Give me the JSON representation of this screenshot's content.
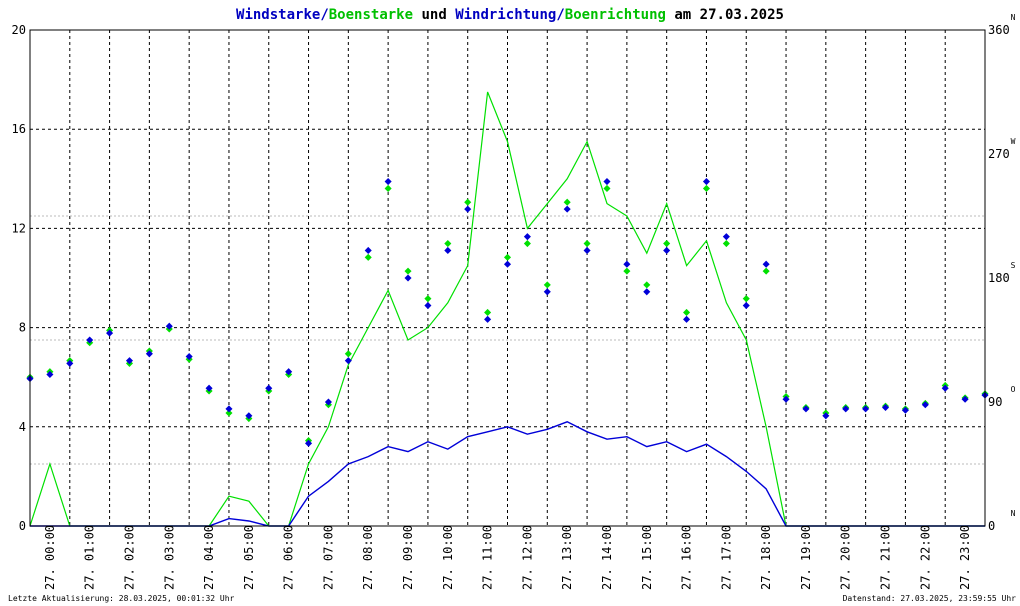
{
  "title": {
    "part1": "Windstarke",
    "sep1": "/",
    "part2": "Boenstarke",
    "mid": " und ",
    "part3": "Windrichtung",
    "sep2": "/",
    "part4": "Boenrichtung",
    "tail": " am 27.03.2025"
  },
  "footer": {
    "left": "Letzte Aktualisierung: 28.03.2025, 00:01:32 Uhr",
    "right": "Datenstand: 27.03.2025, 23:59:55 Uhr"
  },
  "colors": {
    "wind": "#0000d8",
    "gust": "#00e000",
    "title_blue": "#0000c0",
    "title_green": "#00c000",
    "grid": "#000000",
    "marker_red": "#ff0000"
  },
  "chart_data": {
    "type": "line",
    "left_axis": {
      "ylim": [
        0,
        20
      ],
      "ticks": [
        0,
        4,
        8,
        12,
        16,
        20
      ]
    },
    "right_axis": {
      "ylim": [
        0,
        360
      ],
      "ticks": [
        0,
        90,
        180,
        270,
        360
      ],
      "compass": [
        {
          "deg": 0,
          "label": "N"
        },
        {
          "deg": 90,
          "label": "O"
        },
        {
          "deg": 180,
          "label": "S"
        },
        {
          "deg": 270,
          "label": "W"
        },
        {
          "deg": 360,
          "label": "N"
        }
      ]
    },
    "x_ticks": [
      "27. 00:00",
      "27. 01:00",
      "27. 02:00",
      "27. 03:00",
      "27. 04:00",
      "27. 05:00",
      "27. 06:00",
      "27. 07:00",
      "27. 08:00",
      "27. 09:00",
      "27. 10:00",
      "27. 11:00",
      "27. 12:00",
      "27. 13:00",
      "27. 14:00",
      "27. 15:00",
      "27. 16:00",
      "27. 17:00",
      "27. 18:00",
      "27. 19:00",
      "27. 20:00",
      "27. 21:00",
      "27. 22:00",
      "27. 23:00"
    ],
    "xlim_hours": [
      0,
      24
    ],
    "series": [
      {
        "name": "Windstarke",
        "hours": [
          0,
          0.5,
          1,
          1.5,
          2,
          2.5,
          3,
          3.5,
          4,
          4.5,
          5,
          5.5,
          6,
          6.5,
          7,
          7.5,
          8,
          8.5,
          9,
          9.5,
          10,
          10.5,
          11,
          11.5,
          12,
          12.5,
          13,
          13.5,
          14,
          14.5,
          15,
          15.5,
          16,
          16.5,
          17,
          17.5,
          18,
          18.5,
          19,
          19.5,
          20,
          20.5,
          21,
          21.5,
          22,
          22.5,
          23,
          23.5,
          24
        ],
        "values": [
          0,
          0,
          0,
          0,
          0,
          0,
          0,
          0,
          0,
          0,
          0.3,
          0.2,
          0,
          0,
          1.2,
          1.8,
          2.5,
          2.8,
          3.2,
          3.0,
          3.4,
          3.1,
          3.6,
          3.8,
          4.0,
          3.7,
          3.9,
          4.2,
          3.8,
          3.5,
          3.6,
          3.2,
          3.4,
          3.0,
          3.3,
          2.8,
          2.2,
          1.5,
          0,
          0,
          0,
          0,
          0,
          0,
          0,
          0,
          0,
          0,
          0
        ]
      },
      {
        "name": "Boenstarke",
        "hours": [
          0,
          0.5,
          1,
          1.5,
          2,
          2.5,
          3,
          3.5,
          4,
          4.5,
          5,
          5.5,
          6,
          6.5,
          7,
          7.5,
          8,
          8.5,
          9,
          9.5,
          10,
          10.5,
          11,
          11.5,
          12,
          12.5,
          13,
          13.5,
          14,
          14.5,
          15,
          15.5,
          16,
          16.5,
          17,
          17.5,
          18,
          18.5,
          19,
          19.5,
          20,
          20.5,
          21,
          21.5,
          22,
          22.5,
          23,
          23.5,
          24
        ],
        "values": [
          0,
          2.5,
          0,
          0,
          0,
          0,
          0,
          0,
          0,
          0,
          1.2,
          1.0,
          0,
          0,
          2.5,
          4.0,
          6.5,
          8.0,
          9.5,
          7.5,
          8.0,
          9.0,
          10.5,
          17.5,
          15.5,
          12.0,
          13.0,
          14.0,
          15.5,
          13.0,
          12.5,
          11.0,
          13.0,
          10.5,
          11.5,
          9.0,
          7.5,
          4.0,
          0,
          0,
          0,
          0,
          0,
          0,
          0,
          0,
          0,
          0,
          0
        ]
      },
      {
        "name": "Windrichtung",
        "hours": [
          0,
          0.5,
          1,
          1.5,
          2,
          2.5,
          3,
          3.5,
          4,
          4.5,
          5,
          5.5,
          6,
          6.5,
          7,
          7.5,
          8,
          8.5,
          9,
          9.5,
          10,
          10.5,
          11,
          11.5,
          12,
          12.5,
          13,
          13.5,
          14,
          14.5,
          15,
          15.5,
          16,
          16.5,
          17,
          17.5,
          18,
          18.5,
          19,
          19.5,
          20,
          20.5,
          21,
          21.5,
          22,
          22.5,
          23,
          23.5,
          24
        ],
        "values": [
          107,
          110,
          118,
          135,
          140,
          120,
          125,
          145,
          123,
          100,
          85,
          80,
          100,
          112,
          60,
          90,
          120,
          200,
          250,
          180,
          160,
          200,
          230,
          150,
          190,
          210,
          170,
          230,
          200,
          250,
          190,
          170,
          200,
          150,
          250,
          210,
          160,
          190,
          92,
          85,
          80,
          85,
          85,
          86,
          84,
          88,
          100,
          92,
          95
        ]
      },
      {
        "name": "Boenrichtung",
        "hours": [
          0,
          0.5,
          1,
          1.5,
          2,
          2.5,
          3,
          3.5,
          4,
          4.5,
          5,
          5.5,
          6,
          6.5,
          7,
          7.5,
          8,
          8.5,
          9,
          9.5,
          10,
          10.5,
          11,
          11.5,
          12,
          12.5,
          13,
          13.5,
          14,
          14.5,
          15,
          15.5,
          16,
          16.5,
          17,
          17.5,
          18,
          18.5,
          19,
          19.5,
          20,
          20.5,
          21,
          21.5,
          22,
          22.5,
          23,
          23.5,
          24
        ],
        "values": [
          108,
          112,
          120,
          133,
          142,
          118,
          127,
          143,
          121,
          98,
          82,
          78,
          98,
          110,
          62,
          88,
          125,
          195,
          245,
          185,
          165,
          205,
          235,
          155,
          195,
          205,
          175,
          235,
          205,
          245,
          185,
          175,
          205,
          155,
          245,
          205,
          165,
          185,
          94,
          86,
          82,
          86,
          86,
          87,
          85,
          89,
          102,
          93,
          96
        ]
      }
    ]
  }
}
